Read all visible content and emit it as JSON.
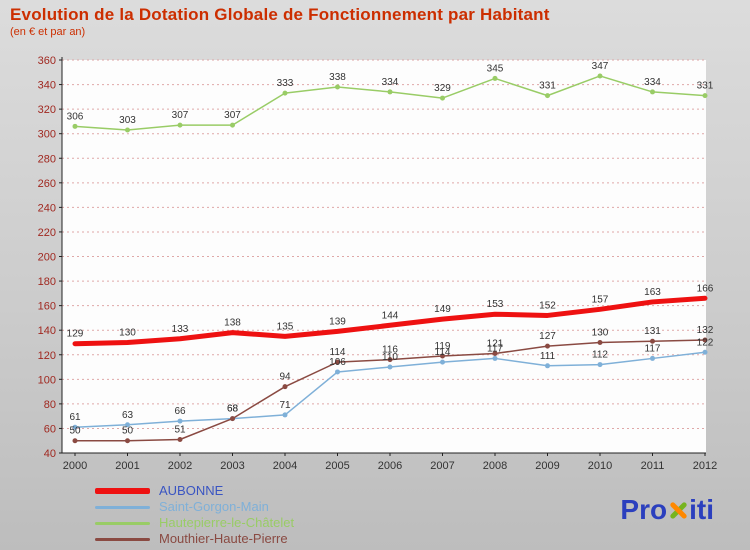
{
  "header": {
    "title": "Evolution de la Dotation Globale de Fonctionnement par Habitant",
    "subtitle": "(en € et par an)",
    "title_color": "#cc2e00"
  },
  "chart_data": {
    "type": "line",
    "title": "Evolution de la Dotation Globale de Fonctionnement par Habitant",
    "subtitle": "(en € et par an)",
    "categories": [
      "2000",
      "2001",
      "2002",
      "2003",
      "2004",
      "2005",
      "2006",
      "2007",
      "2008",
      "2009",
      "2010",
      "2011",
      "2012"
    ],
    "series": [
      {
        "name": "AUBONNE",
        "color": "#ee1111",
        "legend_color": "#3a55c2",
        "width": 5,
        "markers": false,
        "z": 2,
        "values": [
          129,
          130,
          133,
          138,
          135,
          139,
          144,
          149,
          153,
          152,
          157,
          163,
          166
        ]
      },
      {
        "name": "Saint-Gorgon-Main",
        "color": "#7fb0d8",
        "legend_color": "#7fb0d8",
        "width": 1.5,
        "markers": true,
        "z": 0,
        "values": [
          61,
          63,
          66,
          68,
          71,
          106,
          110,
          114,
          117,
          111,
          112,
          117,
          122
        ]
      },
      {
        "name": "Hautepierre-le-Châtelet",
        "color": "#99cc66",
        "legend_color": "#99cc66",
        "width": 1.5,
        "markers": true,
        "z": 0,
        "values": [
          306,
          303,
          307,
          307,
          333,
          338,
          334,
          329,
          345,
          331,
          347,
          334,
          331
        ]
      },
      {
        "name": "Mouthier-Haute-Pierre",
        "color": "#8a4a42",
        "legend_color": "#8a4a42",
        "width": 1.5,
        "markers": true,
        "z": 1,
        "values": [
          50,
          50,
          51,
          68,
          94,
          114,
          116,
          119,
          121,
          127,
          130,
          131,
          132
        ]
      }
    ],
    "ylim": [
      40,
      360
    ],
    "ytick_step": 20,
    "grid": true,
    "legend_position": "bottom-left",
    "plot_bg": "#fdfdfd",
    "grid_color": "#dfa8a8",
    "axis_color": "#222222",
    "axis_label_color": "#a02820",
    "x_label_color": "#333333",
    "data_label_color": "#333333"
  },
  "logo": {
    "pro": "Pro",
    "x": "x",
    "iti": "iti",
    "color": "#2b3fbe"
  }
}
